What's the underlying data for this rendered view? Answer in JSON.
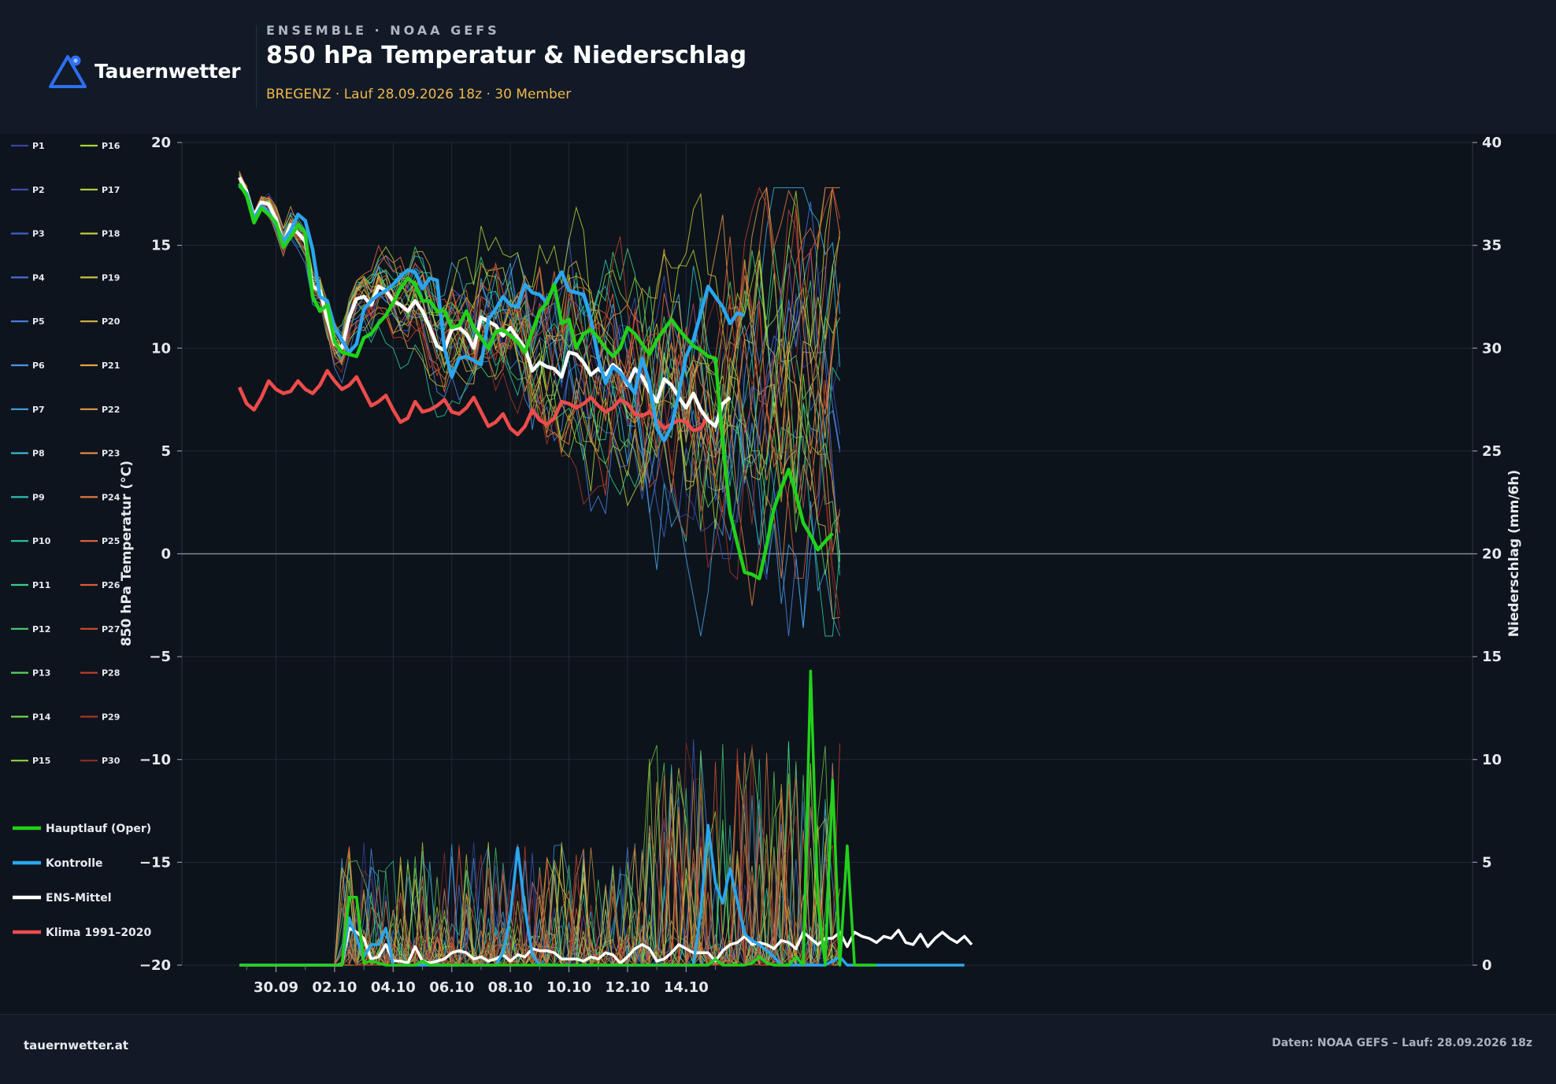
{
  "header": {
    "brand": "Tauernwetter",
    "eyebrow": "ENSEMBLE · NOAA GEFS",
    "title": "850 hPa Temperatur & Niederschlag",
    "subtitle": "BREGENZ · Lauf 28.09.2026 18z · 30 Member"
  },
  "footer": {
    "site": "tauernwetter.at",
    "source": "Daten: NOAA GEFS – Lauf: 28.09.2026 18z"
  },
  "colors": {
    "background": "#0e141d",
    "header": "#111a26",
    "operational": "#22d11a",
    "control": "#2aa6ee",
    "mean": "#ffffff",
    "climate": "#ee4b4b",
    "accent": "#2f6ff0",
    "subtitle": "#f0b74a"
  },
  "chart_data": {
    "type": "line",
    "title": "850 hPa Temperatur & Niederschlag",
    "ylabel": "850 hPa Temperatur (°C)",
    "ylabel_right": "Niederschlag (mm/6h)",
    "ylim": [
      -20,
      20
    ],
    "ylim_right": [
      0,
      40
    ],
    "yticks": [
      "20",
      "15",
      "10",
      "5",
      "0",
      "−5",
      "−10",
      "−15",
      "−20"
    ],
    "yticks_right": [
      "40",
      "35",
      "30",
      "25",
      "20",
      "15",
      "10",
      "5",
      "0"
    ],
    "x_tick_labels": [
      "30.09",
      "02.10",
      "04.10",
      "06.10",
      "08.10",
      "10.10",
      "12.10",
      "14.10"
    ],
    "x_start": "28.09.2026 18z",
    "x_step": "6h",
    "legend_position": "left",
    "member_labels": [
      "P1",
      "P2",
      "P3",
      "P4",
      "P5",
      "P6",
      "P7",
      "P8",
      "P9",
      "P10",
      "P11",
      "P12",
      "P13",
      "P14",
      "P15",
      "P16",
      "P17",
      "P18",
      "P19",
      "P20",
      "P21",
      "P22",
      "P23",
      "P24",
      "P25",
      "P26",
      "P27",
      "P28",
      "P29",
      "P30"
    ],
    "member_colors": [
      "#3b43a3",
      "#3e4fb8",
      "#4060cc",
      "#4670db",
      "#4a82e3",
      "#4a93e6",
      "#42a3e6",
      "#3ab3da",
      "#2fc0b7",
      "#2cc89c",
      "#34cd88",
      "#46d073",
      "#5bd35e",
      "#73d447",
      "#8fd53a",
      "#a7d637",
      "#b5d33a",
      "#c3cb3d",
      "#cfc040",
      "#d8b342",
      "#dda544",
      "#e19744",
      "#e48844",
      "#e5793f",
      "#e3683a",
      "#dd5834",
      "#d24a2f",
      "#c13e2c",
      "#a8352a",
      "#8f2d29"
    ],
    "key_series": [
      {
        "name": "Hauptlauf (Oper)",
        "temp": [
          18.0,
          17.4,
          16.1,
          16.8,
          16.5,
          16.1,
          14.9,
          15.4,
          16.0,
          15.6,
          12.5,
          11.8,
          12.1,
          10.3,
          9.8,
          9.7,
          9.6,
          10.5,
          10.7,
          11.2,
          11.6,
          12.2,
          12.9,
          13.4,
          13.1,
          12.3,
          12.3,
          11.8,
          11.8,
          11.0,
          11.1,
          11.8,
          11.0,
          10.5,
          10.0,
          10.8,
          10.9,
          10.6,
          10.3,
          9.8,
          10.8,
          11.8,
          12.2,
          13.1,
          11.2,
          11.4,
          10.0,
          10.7,
          10.9,
          10.5,
          10.0,
          9.6,
          10.0,
          11.0,
          10.7,
          10.2,
          9.7,
          10.4,
          10.9,
          11.4,
          10.9,
          10.5,
          10.1,
          9.9,
          9.6,
          9.5,
          5.4,
          2.0,
          0.5,
          -0.9,
          -1.0,
          -1.2,
          0.4,
          2.2,
          3.2,
          4.1,
          2.9,
          1.5,
          0.9,
          0.2,
          0.6,
          1.0
        ],
        "precip": [
          0,
          0,
          0,
          0,
          0,
          0,
          0,
          0,
          0,
          0,
          0,
          0,
          0,
          0,
          0,
          3.3,
          3.3,
          0.1,
          0.2,
          0.1,
          0,
          0,
          0,
          0,
          0,
          0.2,
          0,
          0,
          0,
          0,
          0,
          0,
          0,
          0,
          0,
          0,
          0,
          0,
          0,
          0,
          0,
          0,
          0,
          0,
          0,
          0,
          0,
          0,
          0,
          0,
          0,
          0,
          0,
          0,
          0,
          0,
          0,
          0,
          0,
          0,
          0,
          0,
          0,
          0,
          0,
          0.3,
          0,
          0,
          0,
          0,
          0.1,
          0.4,
          0.1,
          0,
          0,
          0,
          0.4,
          0,
          14.3,
          3.0,
          0,
          9.0,
          0,
          5.8,
          0,
          0,
          0,
          0
        ]
      },
      {
        "name": "Kontrolle",
        "temp": [
          17.9,
          17.5,
          16.3,
          16.9,
          16.6,
          16.0,
          15.2,
          15.7,
          16.5,
          16.2,
          14.8,
          12.5,
          12.3,
          11.0,
          10.4,
          9.8,
          10.2,
          11.9,
          12.3,
          12.6,
          12.8,
          13.1,
          13.5,
          13.8,
          13.7,
          12.9,
          13.4,
          13.3,
          10.0,
          8.6,
          9.5,
          9.6,
          9.4,
          9.2,
          11.4,
          11.9,
          12.5,
          12.1,
          12.0,
          13.1,
          12.7,
          12.6,
          12.2,
          13.1,
          13.7,
          12.8,
          12.7,
          12.6,
          11.4,
          9.5,
          8.3,
          9.1,
          8.8,
          8.3,
          7.8,
          9.5,
          8.3,
          6.1,
          5.5,
          6.2,
          7.8,
          9.6,
          10.4,
          11.7,
          13.0,
          12.5,
          12.0,
          11.2,
          11.7,
          11.6
        ],
        "precip": [
          0,
          0,
          0,
          0,
          0,
          0,
          0,
          0,
          0,
          0,
          0,
          0,
          0,
          0,
          0,
          2.3,
          1.3,
          0.4,
          1.0,
          1.0,
          1.8,
          0,
          0,
          0,
          0,
          0,
          0,
          0,
          0,
          0,
          0,
          0,
          0,
          0,
          0,
          0,
          0.6,
          2.4,
          5.7,
          2.7,
          0.5,
          0,
          0,
          0,
          0,
          0,
          0,
          0,
          0,
          0,
          0,
          0,
          0,
          0,
          0,
          0,
          0,
          0,
          0,
          0,
          0,
          0,
          0,
          2.6,
          6.8,
          4.0,
          3.0,
          4.7,
          3.1,
          1.5,
          1.2,
          1.0,
          0.7,
          0.4,
          0,
          0,
          0,
          0,
          0,
          0,
          0,
          0.2,
          0.4,
          0,
          0,
          0,
          0,
          0,
          0,
          0,
          0,
          0,
          0,
          0,
          0,
          0,
          0,
          0,
          0,
          0
        ]
      },
      {
        "name": "ENS-Mittel",
        "temp": [
          18.3,
          17.6,
          16.4,
          17.1,
          17.0,
          16.3,
          15.1,
          16.0,
          15.6,
          15.2,
          13.0,
          12.8,
          11.4,
          10.2,
          10.0,
          11.5,
          12.4,
          12.5,
          12.1,
          13.0,
          12.8,
          12.3,
          12.1,
          11.8,
          12.3,
          11.8,
          11.0,
          10.1,
          9.9,
          10.9,
          11.0,
          10.7,
          10.0,
          11.5,
          11.3,
          11.1,
          10.6,
          11.0,
          10.5,
          10.0,
          8.9,
          9.3,
          9.1,
          9.0,
          8.6,
          9.8,
          9.7,
          9.3,
          8.7,
          9.0,
          8.7,
          9.2,
          8.9,
          8.2,
          9.0,
          8.6,
          7.9,
          7.4,
          8.5,
          8.2,
          7.6,
          7.1,
          7.8,
          7.0,
          6.5,
          6.2,
          7.3,
          7.6
        ],
        "precip": [
          0,
          0,
          0,
          0,
          0,
          0,
          0,
          0,
          0,
          0,
          0,
          0,
          0,
          0,
          0,
          1.8,
          1.6,
          1.3,
          0.3,
          0.4,
          1.0,
          0.2,
          0.2,
          0.1,
          0.9,
          0.2,
          0.1,
          0.2,
          0.3,
          0.6,
          0.7,
          0.6,
          0.3,
          0.4,
          0.2,
          0.3,
          0.5,
          0.2,
          0.5,
          0.4,
          0.8,
          0.7,
          0.7,
          0.6,
          0.3,
          0.3,
          0.3,
          0.2,
          0.4,
          0.3,
          0.6,
          0.5,
          0.1,
          0.4,
          0.8,
          1.0,
          0.8,
          0.2,
          0.3,
          0.6,
          1.0,
          0.8,
          0.6,
          0.6,
          0.6,
          0.2,
          0.7,
          1.0,
          1.1,
          1.4,
          1.0,
          1.1,
          1.0,
          0.8,
          1.2,
          1.1,
          0.8,
          1.6,
          1.3,
          1.0,
          1.3,
          1.3,
          1.6,
          0.9,
          1.6,
          1.4,
          1.3,
          1.1,
          1.4,
          1.3,
          1.7,
          1.1,
          1.0,
          1.5,
          0.9,
          1.3,
          1.6,
          1.3,
          1.1,
          1.4,
          1.0
        ]
      },
      {
        "name": "Klima 1991–2020",
        "temp": [
          8.1,
          7.3,
          7.0,
          7.6,
          8.4,
          8.0,
          7.8,
          7.9,
          8.4,
          8.0,
          7.8,
          8.2,
          8.9,
          8.4,
          8.0,
          8.2,
          8.6,
          7.9,
          7.2,
          7.4,
          7.7,
          7.0,
          6.4,
          6.6,
          7.4,
          6.9,
          7.0,
          7.2,
          7.5,
          6.9,
          6.8,
          7.1,
          7.6,
          6.9,
          6.2,
          6.4,
          6.8,
          6.1,
          5.8,
          6.2,
          7.0,
          6.5,
          6.3,
          6.6,
          7.4,
          7.3,
          7.1,
          7.3,
          7.6,
          7.2,
          6.9,
          7.1,
          7.5,
          7.3,
          6.8,
          6.7,
          6.9,
          6.5,
          6.1,
          6.3,
          6.5,
          6.4,
          6.0,
          6.1,
          6.7
        ]
      }
    ]
  }
}
